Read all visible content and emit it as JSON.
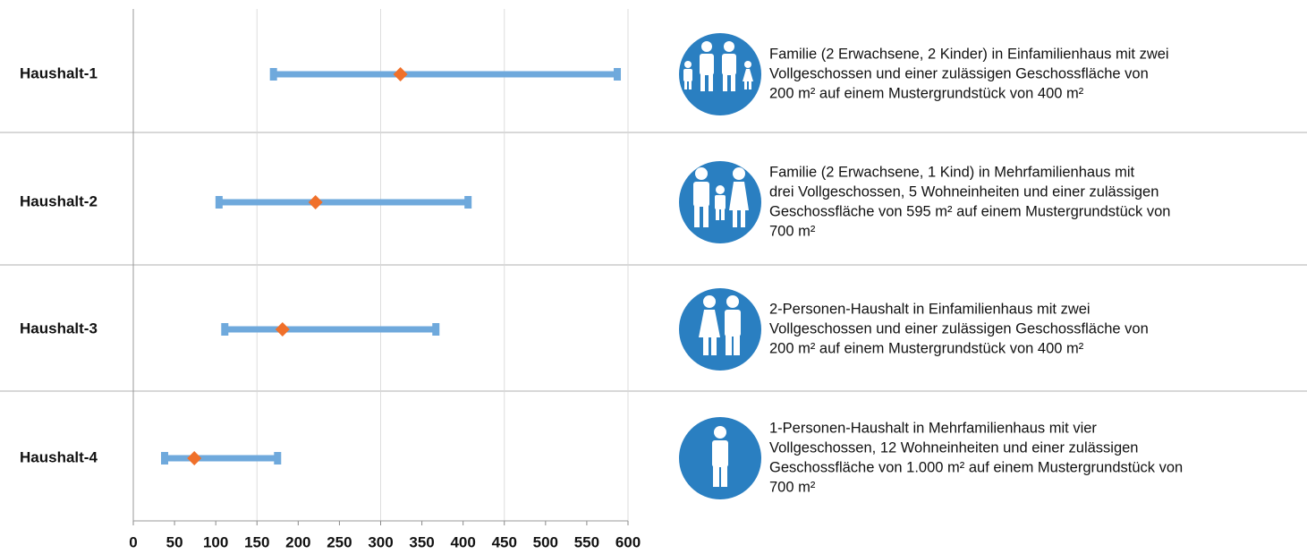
{
  "chart_data": {
    "type": "range",
    "categories": [
      "Haushalt-1",
      "Haushalt-2",
      "Haushalt-3",
      "Haushalt-4"
    ],
    "low": [
      170,
      104,
      111,
      38
    ],
    "high": [
      587,
      406,
      367,
      175
    ],
    "values": [
      324,
      221,
      181,
      74
    ],
    "bar_color": "#6fa9dc",
    "point_color": "#f0702a",
    "xlim": [
      0,
      600
    ],
    "xticks": [
      0,
      50,
      100,
      150,
      200,
      250,
      300,
      350,
      400,
      450,
      500,
      550,
      600
    ],
    "grid": true,
    "annotations": [
      [
        "Familie (2 Erwachsene, 2 Kinder) in Einfamilienhaus mit zwei",
        "Vollgeschossen und einer zulässigen Geschossfläche von",
        "200 m² auf einem Mustergrundstück von 400 m²"
      ],
      [
        "Familie (2 Erwachsene, 1 Kind) in Mehrfamilienhaus mit",
        "drei Vollgeschossen, 5 Wohneinheiten und einer zulässigen",
        "Geschossfläche von 595 m² auf einem Mustergrundstück von",
        "700 m²"
      ],
      [
        "2-Personen-Haushalt in Einfamilienhaus mit zwei",
        "Vollgeschossen und einer zulässigen Geschossfläche von",
        "200 m² auf einem Mustergrundstück von 400 m²"
      ],
      [
        "1-Personen-Haushalt in Mehrfamilienhaus mit vier",
        "Vollgeschossen, 12 Wohneinheiten und einer zulässigen",
        "Geschossfläche von 1.000 m² auf einem Mustergrundstück von",
        "700 m²"
      ]
    ]
  }
}
